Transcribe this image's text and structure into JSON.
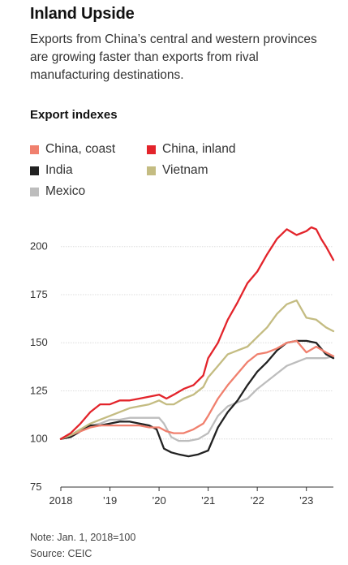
{
  "title": "Inland Upside",
  "subtitle": "Exports from China’s central and western provinces are growing faster than exports from rival manufacturing destinations.",
  "note": "Note: Jan. 1, 2018=100",
  "source": "Source: CEIC",
  "chart_data": {
    "type": "line",
    "title": "Export indexes",
    "xlabel": "",
    "ylabel": "",
    "ylim": [
      75,
      210
    ],
    "yticks": [
      75,
      100,
      125,
      150,
      175,
      200
    ],
    "xlim": [
      2018.0,
      2023.55
    ],
    "xticks": [
      {
        "value": 2018,
        "label": "2018"
      },
      {
        "value": 2019,
        "label": "’19"
      },
      {
        "value": 2020,
        "label": "’20"
      },
      {
        "value": 2021,
        "label": "’21"
      },
      {
        "value": 2022,
        "label": "’22"
      },
      {
        "value": 2023,
        "label": "’23"
      }
    ],
    "grid": "horizontal",
    "legend_position": "top-left",
    "series": [
      {
        "name": "China, coast",
        "color": "#f0806e",
        "x": [
          2018.0,
          2018.2,
          2018.4,
          2018.6,
          2018.8,
          2019.0,
          2019.2,
          2019.4,
          2019.6,
          2019.8,
          2020.0,
          2020.15,
          2020.3,
          2020.5,
          2020.7,
          2020.9,
          2021.0,
          2021.2,
          2021.4,
          2021.6,
          2021.8,
          2022.0,
          2022.2,
          2022.4,
          2022.6,
          2022.8,
          2023.0,
          2023.2,
          2023.4,
          2023.55
        ],
        "values": [
          100,
          102,
          104,
          106,
          107,
          107,
          107,
          107,
          107,
          106,
          106,
          104,
          103,
          103,
          105,
          108,
          112,
          121,
          128,
          134,
          140,
          144,
          145,
          147,
          150,
          151,
          145,
          148,
          145,
          143
        ]
      },
      {
        "name": "China, inland",
        "color": "#e3242b",
        "x": [
          2018.0,
          2018.2,
          2018.4,
          2018.6,
          2018.8,
          2019.0,
          2019.2,
          2019.4,
          2019.6,
          2019.8,
          2020.0,
          2020.15,
          2020.3,
          2020.5,
          2020.7,
          2020.9,
          2021.0,
          2021.2,
          2021.4,
          2021.6,
          2021.8,
          2022.0,
          2022.2,
          2022.4,
          2022.6,
          2022.8,
          2023.0,
          2023.1,
          2023.2,
          2023.3,
          2023.4,
          2023.55
        ],
        "values": [
          100,
          103,
          108,
          114,
          118,
          118,
          120,
          120,
          121,
          122,
          123,
          121,
          123,
          126,
          128,
          133,
          142,
          150,
          162,
          171,
          181,
          187,
          196,
          204,
          209,
          206,
          208,
          210,
          209,
          204,
          200,
          193
        ]
      },
      {
        "name": "India",
        "color": "#222222",
        "x": [
          2018.0,
          2018.2,
          2018.4,
          2018.6,
          2018.8,
          2019.0,
          2019.2,
          2019.4,
          2019.6,
          2019.8,
          2019.95,
          2020.1,
          2020.25,
          2020.4,
          2020.6,
          2020.8,
          2021.0,
          2021.2,
          2021.4,
          2021.6,
          2021.8,
          2022.0,
          2022.2,
          2022.4,
          2022.6,
          2022.8,
          2023.0,
          2023.2,
          2023.4,
          2023.55
        ],
        "values": [
          100,
          101,
          104,
          107,
          107,
          108,
          109,
          109,
          108,
          107,
          105,
          95,
          93,
          92,
          91,
          92,
          94,
          106,
          114,
          120,
          128,
          135,
          140,
          146,
          150,
          151,
          151,
          150,
          144,
          142
        ]
      },
      {
        "name": "Vietnam",
        "color": "#c4bc82",
        "x": [
          2018.0,
          2018.2,
          2018.4,
          2018.6,
          2018.8,
          2019.0,
          2019.2,
          2019.4,
          2019.6,
          2019.8,
          2020.0,
          2020.15,
          2020.3,
          2020.5,
          2020.7,
          2020.9,
          2021.0,
          2021.2,
          2021.4,
          2021.6,
          2021.8,
          2022.0,
          2022.2,
          2022.4,
          2022.6,
          2022.8,
          2023.0,
          2023.2,
          2023.4,
          2023.55
        ],
        "values": [
          100,
          102,
          105,
          108,
          110,
          112,
          114,
          116,
          117,
          118,
          120,
          118,
          118,
          121,
          123,
          127,
          132,
          138,
          144,
          146,
          148,
          153,
          158,
          165,
          170,
          172,
          163,
          162,
          158,
          156
        ]
      },
      {
        "name": "Mexico",
        "color": "#bdbdbd",
        "x": [
          2018.0,
          2018.2,
          2018.4,
          2018.6,
          2018.8,
          2019.0,
          2019.2,
          2019.4,
          2019.6,
          2019.8,
          2020.0,
          2020.1,
          2020.25,
          2020.4,
          2020.6,
          2020.8,
          2021.0,
          2021.2,
          2021.4,
          2021.6,
          2021.8,
          2022.0,
          2022.2,
          2022.4,
          2022.6,
          2022.8,
          2023.0,
          2023.2,
          2023.4,
          2023.55
        ],
        "values": [
          100,
          102,
          105,
          107,
          108,
          110,
          110,
          111,
          111,
          111,
          111,
          108,
          101,
          99,
          99,
          100,
          103,
          112,
          117,
          119,
          121,
          126,
          130,
          134,
          138,
          140,
          142,
          142,
          142,
          143
        ]
      }
    ]
  }
}
